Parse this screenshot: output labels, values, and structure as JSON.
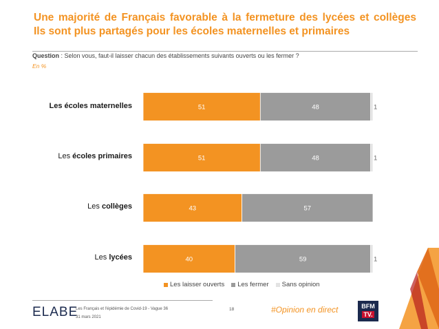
{
  "header": {
    "title_line1": "Une majorité de Français favorable à la fermeture des lycées et collèges",
    "title_line2": "Ils sont plus partagés pour les écoles maternelles et primaires"
  },
  "question": {
    "label": "Question",
    "text": " : Selon vous, faut-il laisser chacun des établissements suivants ouverts ou les fermer ?"
  },
  "unit": "En %",
  "colors": {
    "ouverts": "#f39322",
    "fermer": "#9b9b9b",
    "sans_opinion": "#e3e3e3",
    "accent": "#f39322"
  },
  "chart_data": {
    "type": "bar",
    "orientation": "horizontal",
    "stacked": true,
    "categories": [
      {
        "prefix": "",
        "bold": "Les écoles maternelles"
      },
      {
        "prefix": "Les ",
        "bold": "écoles primaires"
      },
      {
        "prefix": "Les ",
        "bold": "collèges"
      },
      {
        "prefix": "Les ",
        "bold": "lycées"
      }
    ],
    "series": [
      {
        "name": "Les laisser ouverts",
        "values": [
          51,
          51,
          43,
          40
        ]
      },
      {
        "name": "Les fermer",
        "values": [
          48,
          48,
          57,
          59
        ]
      },
      {
        "name": "Sans opinion",
        "values": [
          1,
          1,
          0,
          1
        ]
      }
    ],
    "xlim": [
      0,
      100
    ],
    "legend_position": "bottom",
    "grid": false
  },
  "legend": {
    "items": [
      "Les laisser ouverts",
      "Les fermer",
      "Sans opinion"
    ]
  },
  "footer": {
    "logo": "ELABE",
    "source": "Les Français et l'épidémie de Covid-19 - Vague 36",
    "date": "31 mars 2021",
    "page": "18",
    "hashtag": "#Opinion en direct",
    "bfm_line1": "BFM",
    "bfm_line2": "TV."
  }
}
